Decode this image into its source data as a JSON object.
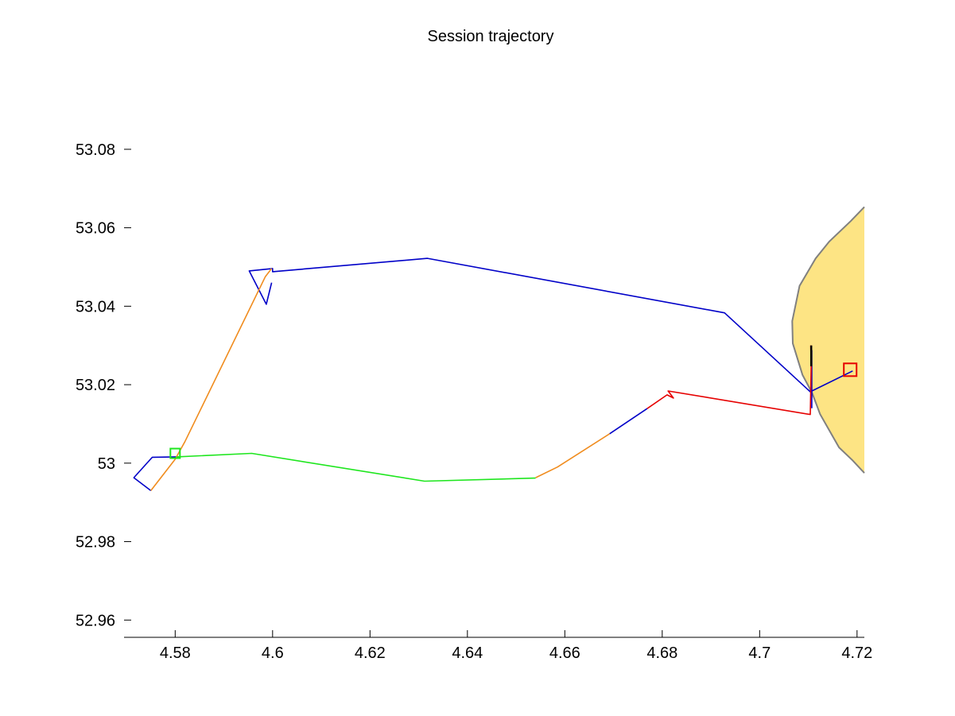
{
  "chart_data": {
    "type": "line",
    "title": "Session trajectory",
    "xlabel": "",
    "ylabel": "",
    "xlim": [
      4.5695,
      4.7215
    ],
    "ylim": [
      52.9556,
      53.0978
    ],
    "grid": false,
    "x_ticks": [
      4.58,
      4.6,
      4.62,
      4.64,
      4.66,
      4.68,
      4.7,
      4.72
    ],
    "x_tick_labels": [
      "4.58",
      "4.6",
      "4.62",
      "4.64",
      "4.66",
      "4.68",
      "4.7",
      "4.72"
    ],
    "y_ticks": [
      52.96,
      52.98,
      53.0,
      53.02,
      53.04,
      53.06,
      53.08
    ],
    "y_tick_labels": [
      "52.96",
      "52.98",
      "53",
      "53.02",
      "53.04",
      "53.06",
      "53.08"
    ],
    "region": {
      "fill": "#fde484",
      "stroke": "#808080",
      "points": [
        [
          4.7215,
          53.0653
        ],
        [
          4.7187,
          53.0617
        ],
        [
          4.7143,
          53.0565
        ],
        [
          4.7115,
          53.0522
        ],
        [
          4.7082,
          53.0452
        ],
        [
          4.7067,
          53.0362
        ],
        [
          4.7068,
          53.0305
        ],
        [
          4.7088,
          53.0225
        ],
        [
          4.7108,
          53.0178
        ],
        [
          4.7124,
          53.0125
        ],
        [
          4.7147,
          53.0075
        ],
        [
          4.7163,
          53.004
        ],
        [
          4.7191,
          53.0007
        ],
        [
          4.7215,
          52.9975
        ]
      ]
    },
    "series": [
      {
        "color": "#0000c8",
        "segments": [
          [
            [
              4.5803,
              53.0016
            ],
            [
              4.5753,
              53.0015
            ],
            [
              4.5715,
              52.9963
            ],
            [
              4.575,
              52.993
            ]
          ],
          [
            [
              4.5998,
              53.046
            ],
            [
              4.5987,
              53.0405
            ],
            [
              4.5952,
              53.049
            ],
            [
              4.6,
              53.0496
            ],
            [
              4.6,
              53.0488
            ],
            [
              4.6318,
              53.0522
            ],
            [
              4.6928,
              53.0383
            ],
            [
              4.7104,
              53.0182
            ],
            [
              4.7191,
              53.0235
            ]
          ],
          [
            [
              4.7107,
              53.0288
            ],
            [
              4.7107,
              53.014
            ]
          ],
          [
            [
              4.6692,
              53.0075
            ],
            [
              4.6769,
              53.0139
            ]
          ]
        ]
      },
      {
        "color": "#f08c1e",
        "segments": [
          [
            [
              4.575,
              52.993
            ],
            [
              4.58,
              53.001
            ],
            [
              4.582,
              53.0055
            ],
            [
              4.5985,
              53.0475
            ],
            [
              4.5998,
              53.0496
            ]
          ],
          [
            [
              4.654,
              52.9963
            ],
            [
              4.6585,
              52.999
            ],
            [
              4.6692,
              53.0075
            ]
          ]
        ]
      },
      {
        "color": "#1ee61e",
        "segments": [
          [
            [
              4.5803,
              53.0016
            ],
            [
              4.5957,
              53.0025
            ],
            [
              4.6312,
              52.9954
            ],
            [
              4.654,
              52.9962
            ]
          ]
        ]
      },
      {
        "color": "#e60000",
        "segments": [
          [
            [
              4.6769,
              53.0139
            ],
            [
              4.681,
              53.0174
            ],
            [
              4.6823,
              53.0166
            ],
            [
              4.6812,
              53.0184
            ],
            [
              4.7104,
              53.0124
            ],
            [
              4.7106,
              53.025
            ],
            [
              4.7105,
              53.03
            ]
          ]
        ]
      },
      {
        "color": "#000000",
        "segments": [
          [
            [
              4.7106,
              53.03
            ],
            [
              4.7106,
              53.0247
            ]
          ]
        ]
      }
    ],
    "markers": [
      {
        "x": 4.58,
        "y": 53.0025,
        "color": "#1ee61e",
        "size": 12
      },
      {
        "x": 4.7186,
        "y": 53.0238,
        "color": "#e60000",
        "size": 16
      }
    ]
  }
}
